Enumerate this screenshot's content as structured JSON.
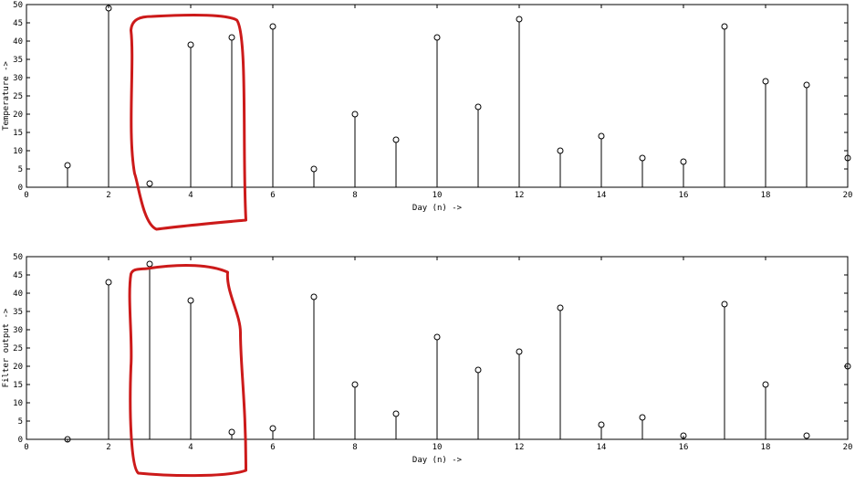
{
  "colors": {
    "stem": "#000000",
    "highlight": "#cc1a1a",
    "background": "#ffffff"
  },
  "chart_data": [
    {
      "type": "stem",
      "title": "",
      "xlabel": "Day (n) ->",
      "ylabel": "Temperature ->",
      "xlim": [
        0,
        20
      ],
      "ylim": [
        0,
        50
      ],
      "xticks": [
        "0",
        "2",
        "4",
        "6",
        "8",
        "10",
        "12",
        "14",
        "16",
        "18",
        "20"
      ],
      "yticks": [
        "0",
        "5",
        "10",
        "15",
        "20",
        "25",
        "30",
        "35",
        "40",
        "45",
        "50"
      ],
      "grid": false,
      "x": [
        1,
        2,
        3,
        4,
        5,
        6,
        7,
        8,
        9,
        10,
        11,
        12,
        13,
        14,
        15,
        16,
        17,
        18,
        19,
        20
      ],
      "values": [
        6,
        49,
        1,
        39,
        41,
        44,
        5,
        20,
        13,
        41,
        22,
        46,
        10,
        14,
        8,
        7,
        44,
        29,
        28,
        8
      ],
      "highlight_region": {
        "x_range": [
          2.5,
          5.3
        ],
        "color": "#cc1a1a"
      }
    },
    {
      "type": "stem",
      "title": "",
      "xlabel": "Day (n) ->",
      "ylabel": "Filter output ->",
      "xlim": [
        0,
        20
      ],
      "ylim": [
        0,
        50
      ],
      "xticks": [
        "0",
        "2",
        "4",
        "6",
        "8",
        "10",
        "12",
        "14",
        "16",
        "18",
        "20"
      ],
      "yticks": [
        "0",
        "5",
        "10",
        "15",
        "20",
        "25",
        "30",
        "35",
        "40",
        "45",
        "50"
      ],
      "grid": false,
      "x": [
        1,
        2,
        3,
        4,
        5,
        6,
        7,
        8,
        9,
        10,
        11,
        12,
        13,
        14,
        15,
        16,
        17,
        18,
        19,
        20
      ],
      "values": [
        0,
        43,
        48,
        38,
        2,
        3,
        39,
        15,
        7,
        28,
        19,
        24,
        36,
        4,
        6,
        1,
        37,
        15,
        1,
        20
      ],
      "highlight_region": {
        "x_range": [
          2.5,
          5.3
        ],
        "color": "#cc1a1a"
      }
    }
  ]
}
